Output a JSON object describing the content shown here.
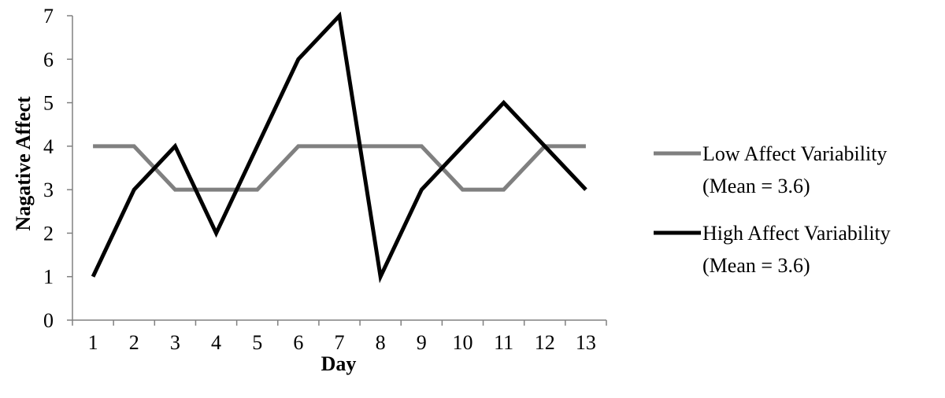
{
  "chart_data": {
    "type": "line",
    "title": "",
    "xlabel": "Day",
    "ylabel": "Nagative Affect",
    "categories": [
      "1",
      "2",
      "3",
      "4",
      "5",
      "6",
      "7",
      "8",
      "9",
      "10",
      "11",
      "12",
      "13"
    ],
    "ylim": [
      0,
      7
    ],
    "yticks": [
      "0",
      "1",
      "2",
      "3",
      "4",
      "5",
      "6",
      "7"
    ],
    "grid": false,
    "legend_position": "right",
    "series": [
      {
        "name": "Low Affect Variability",
        "name_line2": "(Mean = 3.6)",
        "color": "#808080",
        "values": [
          4,
          4,
          3,
          3,
          3,
          4,
          4,
          4,
          4,
          3,
          3,
          4,
          4
        ]
      },
      {
        "name": "High Affect Variability",
        "name_line2": "(Mean = 3.6)",
        "color": "#000000",
        "values": [
          1,
          3,
          4,
          2,
          4,
          6,
          7,
          1,
          3,
          4,
          5,
          4,
          3
        ]
      }
    ]
  }
}
